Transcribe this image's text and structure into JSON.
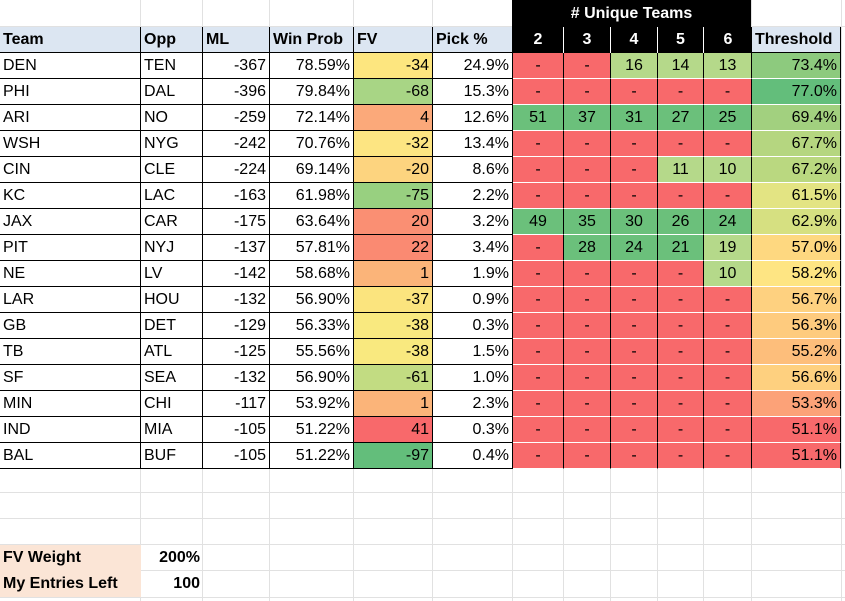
{
  "header": {
    "unique_teams_title": "# Unique Teams",
    "columns": [
      "Team",
      "Opp",
      "ML",
      "Win Prob",
      "FV",
      "Pick %"
    ],
    "unique_cols": [
      "2",
      "3",
      "4",
      "5",
      "6"
    ],
    "threshold": "Threshold"
  },
  "rows": [
    {
      "team": "DEN",
      "opp": "TEN",
      "ml": "-367",
      "win": "78.59%",
      "fv": "-34",
      "pick": "24.9%",
      "u": [
        "-",
        "-",
        "16",
        "14",
        "13"
      ],
      "thr": "73.4%"
    },
    {
      "team": "PHI",
      "opp": "DAL",
      "ml": "-396",
      "win": "79.84%",
      "fv": "-68",
      "pick": "15.3%",
      "u": [
        "-",
        "-",
        "-",
        "-",
        "-"
      ],
      "thr": "77.0%"
    },
    {
      "team": "ARI",
      "opp": "NO",
      "ml": "-259",
      "win": "72.14%",
      "fv": "4",
      "pick": "12.6%",
      "u": [
        "51",
        "37",
        "31",
        "27",
        "25"
      ],
      "thr": "69.4%"
    },
    {
      "team": "WSH",
      "opp": "NYG",
      "ml": "-242",
      "win": "70.76%",
      "fv": "-32",
      "pick": "13.4%",
      "u": [
        "-",
        "-",
        "-",
        "-",
        "-"
      ],
      "thr": "67.7%"
    },
    {
      "team": "CIN",
      "opp": "CLE",
      "ml": "-224",
      "win": "69.14%",
      "fv": "-20",
      "pick": "8.6%",
      "u": [
        "-",
        "-",
        "-",
        "11",
        "10"
      ],
      "thr": "67.2%"
    },
    {
      "team": "KC",
      "opp": "LAC",
      "ml": "-163",
      "win": "61.98%",
      "fv": "-75",
      "pick": "2.2%",
      "u": [
        "-",
        "-",
        "-",
        "-",
        "-"
      ],
      "thr": "61.5%"
    },
    {
      "team": "JAX",
      "opp": "CAR",
      "ml": "-175",
      "win": "63.64%",
      "fv": "20",
      "pick": "3.2%",
      "u": [
        "49",
        "35",
        "30",
        "26",
        "24"
      ],
      "thr": "62.9%"
    },
    {
      "team": "PIT",
      "opp": "NYJ",
      "ml": "-137",
      "win": "57.81%",
      "fv": "22",
      "pick": "3.4%",
      "u": [
        "-",
        "28",
        "24",
        "21",
        "19"
      ],
      "thr": "57.0%"
    },
    {
      "team": "NE",
      "opp": "LV",
      "ml": "-142",
      "win": "58.68%",
      "fv": "1",
      "pick": "1.9%",
      "u": [
        "-",
        "-",
        "-",
        "-",
        "10"
      ],
      "thr": "58.2%"
    },
    {
      "team": "LAR",
      "opp": "HOU",
      "ml": "-132",
      "win": "56.90%",
      "fv": "-37",
      "pick": "0.9%",
      "u": [
        "-",
        "-",
        "-",
        "-",
        "-"
      ],
      "thr": "56.7%"
    },
    {
      "team": "GB",
      "opp": "DET",
      "ml": "-129",
      "win": "56.33%",
      "fv": "-38",
      "pick": "0.3%",
      "u": [
        "-",
        "-",
        "-",
        "-",
        "-"
      ],
      "thr": "56.3%"
    },
    {
      "team": "TB",
      "opp": "ATL",
      "ml": "-125",
      "win": "55.56%",
      "fv": "-38",
      "pick": "1.5%",
      "u": [
        "-",
        "-",
        "-",
        "-",
        "-"
      ],
      "thr": "55.2%"
    },
    {
      "team": "SF",
      "opp": "SEA",
      "ml": "-132",
      "win": "56.90%",
      "fv": "-61",
      "pick": "1.0%",
      "u": [
        "-",
        "-",
        "-",
        "-",
        "-"
      ],
      "thr": "56.6%"
    },
    {
      "team": "MIN",
      "opp": "CHI",
      "ml": "-117",
      "win": "53.92%",
      "fv": "1",
      "pick": "2.3%",
      "u": [
        "-",
        "-",
        "-",
        "-",
        "-"
      ],
      "thr": "53.3%"
    },
    {
      "team": "IND",
      "opp": "MIA",
      "ml": "-105",
      "win": "51.22%",
      "fv": "41",
      "pick": "0.3%",
      "u": [
        "-",
        "-",
        "-",
        "-",
        "-"
      ],
      "thr": "51.1%"
    },
    {
      "team": "BAL",
      "opp": "BUF",
      "ml": "-105",
      "win": "51.22%",
      "fv": "-97",
      "pick": "0.4%",
      "u": [
        "-",
        "-",
        "-",
        "-",
        "-"
      ],
      "thr": "51.1%"
    }
  ],
  "colors": {
    "fv": [
      "#fde67f",
      "#a8d585",
      "#fba97a",
      "#fde582",
      "#fdd47f",
      "#98d080",
      "#fa8f73",
      "#fa8a72",
      "#fbb479",
      "#fbe47e",
      "#f9e97f",
      "#f9e97f",
      "#c2dc82",
      "#fbb479",
      "#f8696b",
      "#63be7b"
    ],
    "thr": [
      "#8dca7e",
      "#63be7b",
      "#a2d07f",
      "#b5d680",
      "#bad880",
      "#e3e483",
      "#d6e081",
      "#fed880",
      "#fee583",
      "#fed180",
      "#fecb7e",
      "#fdbe7b",
      "#fed07f",
      "#fca278",
      "#f8696b",
      "#f8696b"
    ],
    "u_green": "#6bc07b",
    "u_lightgreen": "#b5d98a",
    "u_red": "#f8696b",
    "header_fill": "#dce6f2",
    "label_fill": "#fbe5d6"
  },
  "settings": {
    "fv_weight_label": "FV Weight",
    "fv_weight_value": "200%",
    "entries_left_label": "My Entries Left",
    "entries_left_value": "100"
  }
}
